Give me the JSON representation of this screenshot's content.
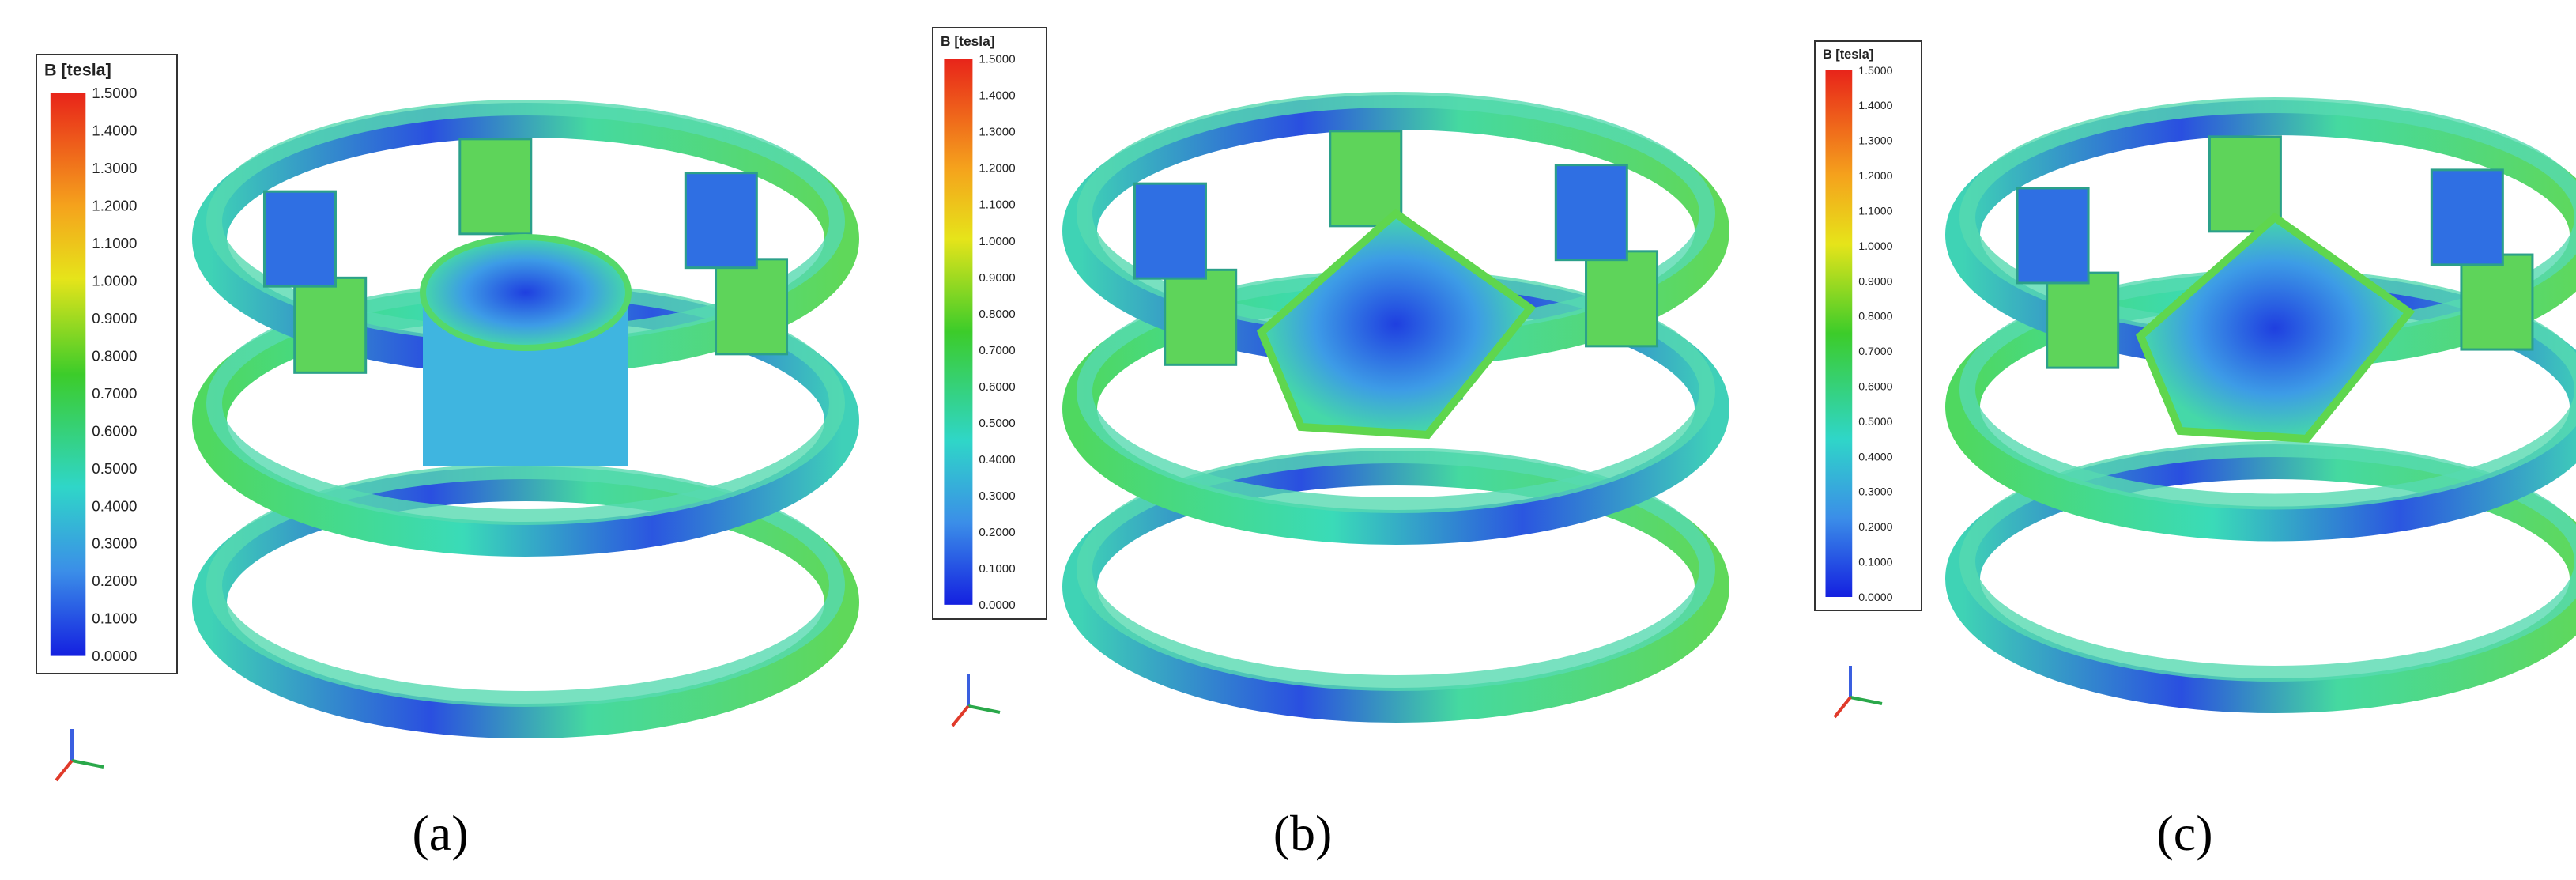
{
  "panels": [
    {
      "legend_title": "B [tesla]",
      "legend_ticks": [
        "1.5000",
        "1.4000",
        "1.3000",
        "1.2000",
        "1.1000",
        "1.0000",
        "0.9000",
        "0.8000",
        "0.7000",
        "0.6000",
        "0.5000",
        "0.4000",
        "0.3000",
        "0.2000",
        "0.1000",
        "0.0000"
      ],
      "caption": "(a)"
    },
    {
      "legend_title": "B [tesla]",
      "legend_ticks": [
        "1.5000",
        "1.4000",
        "1.3000",
        "1.2000",
        "1.1000",
        "1.0000",
        "0.9000",
        "0.8000",
        "0.7000",
        "0.6000",
        "0.5000",
        "0.4000",
        "0.3000",
        "0.2000",
        "0.1000",
        "0.0000"
      ],
      "caption": "(b)"
    },
    {
      "legend_title": "B [tesla]",
      "legend_ticks": [
        "1.5000",
        "1.4000",
        "1.3000",
        "1.2000",
        "1.1000",
        "1.0000",
        "0.9000",
        "0.8000",
        "0.7000",
        "0.6000",
        "0.5000",
        "0.4000",
        "0.3000",
        "0.2000",
        "0.1000",
        "0.0000"
      ],
      "caption": "(c)"
    }
  ]
}
